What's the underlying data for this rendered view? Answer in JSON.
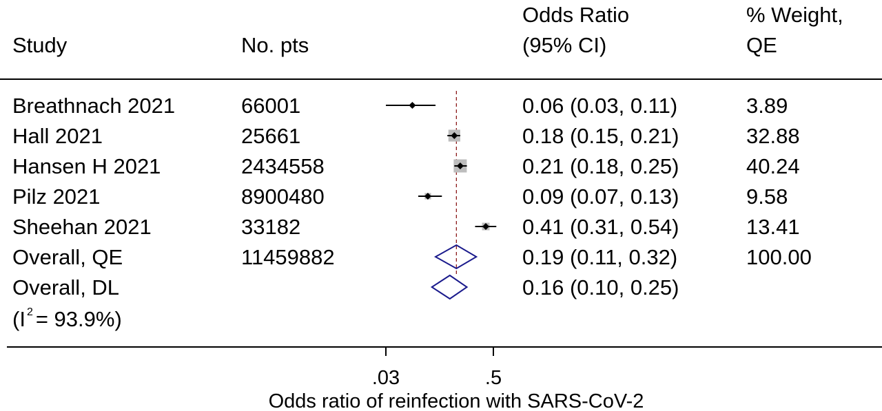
{
  "headers": {
    "study": "Study",
    "no_pts": "No. pts",
    "or_ci": "Odds Ratio\n(95% CI)",
    "weight": "% Weight,\nQE"
  },
  "rows": [
    {
      "study": "Breathnach 2021",
      "pts": "66001",
      "or_text": "0.06 (0.03, 0.11)",
      "weight": "3.89"
    },
    {
      "study": "Hall 2021",
      "pts": "25661",
      "or_text": "0.18 (0.15, 0.21)",
      "weight": "32.88"
    },
    {
      "study": "Hansen H 2021",
      "pts": "2434558",
      "or_text": "0.21 (0.18, 0.25)",
      "weight": "40.24"
    },
    {
      "study": "Pilz 2021",
      "pts": "8900480",
      "or_text": "0.09 (0.07, 0.13)",
      "weight": "9.58"
    },
    {
      "study": "Sheehan 2021",
      "pts": "33182",
      "or_text": "0.41 (0.31, 0.54)",
      "weight": "13.41"
    },
    {
      "study": "Overall, QE",
      "pts": "11459882",
      "or_text": "0.19 (0.11, 0.32)",
      "weight": "100.00"
    },
    {
      "study": "Overall, DL",
      "pts": "",
      "or_text": "0.16 (0.10, 0.25)",
      "weight": ""
    }
  ],
  "heterogeneity": {
    "prefix": "(I",
    "sup": "2",
    "suffix": "= 93.9%)"
  },
  "colors": {
    "diamond": "#1a1a8c",
    "marker": "#000000",
    "weight_box": "#bdbdbd",
    "ref_line": "#8b1a1a"
  },
  "chart_data": {
    "type": "forest",
    "x_scale": "log",
    "xlabel": "Odds ratio of reinfection with SARS-CoV-2",
    "xticks": [
      0.03,
      0.5
    ],
    "xtick_labels": [
      ".03",
      ".5"
    ],
    "reference_line": 0.19,
    "studies": [
      {
        "name": "Breathnach 2021",
        "or": 0.06,
        "lo": 0.03,
        "hi": 0.11,
        "weight": 3.89
      },
      {
        "name": "Hall 2021",
        "or": 0.18,
        "lo": 0.15,
        "hi": 0.21,
        "weight": 32.88
      },
      {
        "name": "Hansen H 2021",
        "or": 0.21,
        "lo": 0.18,
        "hi": 0.25,
        "weight": 40.24
      },
      {
        "name": "Pilz 2021",
        "or": 0.09,
        "lo": 0.07,
        "hi": 0.13,
        "weight": 9.58
      },
      {
        "name": "Sheehan 2021",
        "or": 0.41,
        "lo": 0.31,
        "hi": 0.54,
        "weight": 13.41
      }
    ],
    "pooled": [
      {
        "name": "Overall, QE",
        "or": 0.19,
        "lo": 0.11,
        "hi": 0.32
      },
      {
        "name": "Overall, DL",
        "or": 0.16,
        "lo": 0.1,
        "hi": 0.25
      }
    ]
  }
}
